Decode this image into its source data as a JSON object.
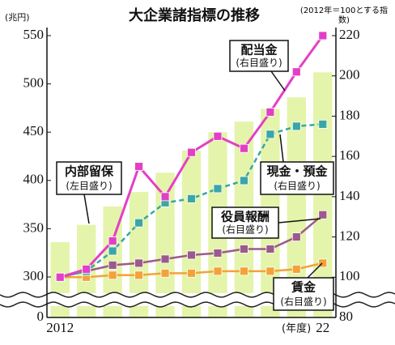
{
  "chart_data": {
    "type": "bar_line",
    "title": "大企業諸指標の推移",
    "y_label": "(兆円)",
    "y2_label": "(2012年＝100とする指数)",
    "x_label": "(年度)",
    "categories": [
      "2012",
      null,
      null,
      null,
      null,
      null,
      null,
      null,
      null,
      null,
      "22"
    ],
    "ylim": [
      0,
      550
    ],
    "ybreak": [
      0,
      300
    ],
    "yticks": [
      0,
      300,
      350,
      400,
      450,
      500,
      550
    ],
    "y2lim": [
      80,
      220
    ],
    "y2ticks": [
      80,
      100,
      120,
      140,
      160,
      180,
      200,
      220
    ],
    "series": [
      {
        "name": "内部留保",
        "note": "(左目盛り)",
        "color": "#e4f4aa",
        "axis": "y",
        "kind": "bar",
        "values": [
          336,
          354,
          373,
          388,
          408,
          431,
          450,
          461,
          474,
          486,
          512
        ]
      },
      {
        "name": "配当金",
        "note": "(右目盛り)",
        "color": "#e33fc6",
        "axis": "y2",
        "kind": "line",
        "values": [
          100,
          104,
          118,
          155,
          140,
          162,
          170,
          164,
          182,
          202,
          220
        ]
      },
      {
        "name": "現金・預金",
        "note": "(右目盛り)",
        "color": "#3aa6a6",
        "axis": "y2",
        "kind": "dashed",
        "values": [
          100,
          103,
          113,
          127,
          137,
          139,
          144,
          148,
          171,
          175,
          176
        ]
      },
      {
        "name": "役員報酬",
        "note": "(右目盛り)",
        "color": "#9b5a8c",
        "axis": "y2",
        "kind": "line",
        "values": [
          100,
          103,
          106,
          107,
          109,
          111,
          112,
          114,
          114,
          120,
          131
        ]
      },
      {
        "name": "賃金",
        "note": "(右目盛り)",
        "color": "#f3a23a",
        "axis": "y2",
        "kind": "line",
        "values": [
          100,
          100,
          101,
          101,
          102,
          102,
          103,
          103,
          103,
          104,
          107
        ]
      }
    ]
  }
}
